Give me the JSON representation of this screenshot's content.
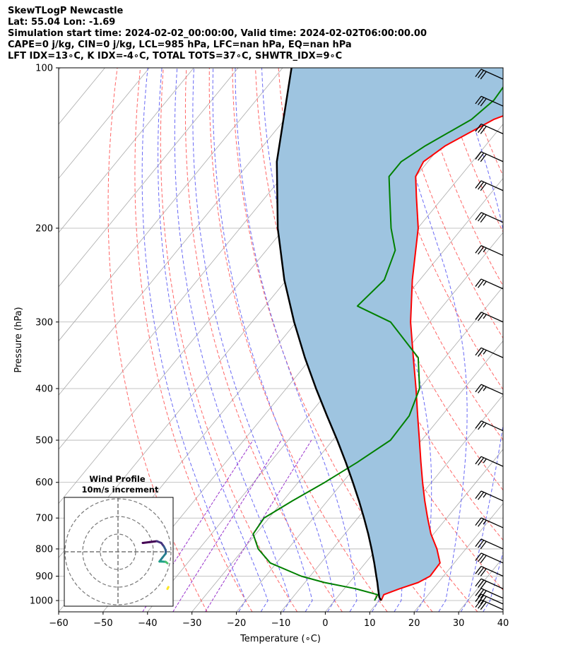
{
  "header": {
    "line1": "SkewTLogP Newcastle",
    "line2": "Lat: 55.04   Lon: -1.69",
    "line3": "Simulation start time: 2024-02-02_00:00:00, Valid time: 2024-02-02T06:00:00.00",
    "line4": "CAPE=0 j/kg, CIN=0 j/kg, LCL=985 hPa, LFC=nan hPa, EQ=nan hPa",
    "line5": "LFT IDX=13∘C, K IDX=-4∘C, TOTAL TOTS=37∘C, SHWTR_IDX=9∘C"
  },
  "colors": {
    "temperature": "#ff0000",
    "dewpoint": "#008000",
    "parcel": "#000000",
    "cape_fill": "#9ec4e0",
    "dry_adiabat": "#ff6666",
    "moist_adiabat": "#6a6af5",
    "mixing_ratio": "#9932cc",
    "isotherm": "#aaaaaa"
  },
  "chart_data": {
    "type": "line",
    "title": "",
    "xlabel": "Temperature (∘C)",
    "ylabel": "Pressure (hPa)",
    "xlim": [
      -60,
      40
    ],
    "ylim": [
      1050,
      100
    ],
    "yscale": "log",
    "skew": true,
    "grid": true,
    "x_ticks": [
      "−60",
      "−50",
      "−40",
      "−30",
      "−20",
      "−10",
      "0",
      "10",
      "20",
      "30",
      "40"
    ],
    "y_ticks": [
      "100",
      "200",
      "300",
      "400",
      "500",
      "600",
      "700",
      "800",
      "900",
      "1000"
    ],
    "series": [
      {
        "name": "Temperature",
        "pressure": [
          1000,
          975,
          950,
          925,
          900,
          850,
          800,
          750,
          700,
          650,
          600,
          550,
          500,
          450,
          400,
          350,
          300,
          250,
          200,
          175,
          160,
          150,
          140,
          125,
          115,
          105,
          100
        ],
        "values": [
          10.5,
          10.0,
          12.5,
          15.5,
          17.0,
          16.8,
          13.5,
          9.4,
          5.7,
          1.9,
          -2.0,
          -6.1,
          -10.5,
          -15.4,
          -20.8,
          -27.1,
          -34.3,
          -41.7,
          -49.9,
          -56.0,
          -60.0,
          -61.0,
          -59.0,
          -53.0,
          -45.0,
          -39.0,
          -37.0
        ]
      },
      {
        "name": "Dewpoint",
        "pressure": [
          1000,
          975,
          950,
          925,
          900,
          850,
          800,
          750,
          700,
          650,
          600,
          550,
          500,
          450,
          400,
          350,
          300,
          280,
          250,
          220,
          200,
          175,
          160,
          150,
          140,
          125,
          115,
          105,
          100
        ],
        "values": [
          9.0,
          8.6,
          2.5,
          -5.6,
          -12.0,
          -21.4,
          -26.7,
          -30.6,
          -31.1,
          -27.9,
          -24.0,
          -20.4,
          -17.0,
          -17.3,
          -20.0,
          -26.0,
          -38.8,
          -49.2,
          -48.0,
          -51.0,
          -56.0,
          -62.0,
          -66.0,
          -66.0,
          -63.5,
          -58.0,
          -56.5,
          -57.0,
          -56.0
        ]
      },
      {
        "name": "Parcel",
        "pressure": [
          1000,
          985,
          975,
          950,
          925,
          900,
          850,
          800,
          750,
          700,
          650,
          600,
          550,
          500,
          450,
          400,
          350,
          300,
          250,
          200,
          150,
          100
        ],
        "values": [
          10.5,
          9.4,
          8.9,
          7.6,
          6.3,
          4.9,
          2.0,
          -1.2,
          -4.7,
          -8.6,
          -12.9,
          -17.7,
          -23.0,
          -29.0,
          -35.8,
          -43.3,
          -51.5,
          -60.5,
          -70.5,
          -81.5,
          -94.0,
          -108.0
        ]
      }
    ],
    "barbs": [
      {
        "pressure": 1040,
        "speed_kt": 30
      },
      {
        "pressure": 1015,
        "speed_kt": 30
      },
      {
        "pressure": 990,
        "speed_kt": 30
      },
      {
        "pressure": 950,
        "speed_kt": 30
      },
      {
        "pressure": 900,
        "speed_kt": 30
      },
      {
        "pressure": 850,
        "speed_kt": 30
      },
      {
        "pressure": 800,
        "speed_kt": 30
      },
      {
        "pressure": 730,
        "speed_kt": 25
      },
      {
        "pressure": 650,
        "speed_kt": 25
      },
      {
        "pressure": 560,
        "speed_kt": 25
      },
      {
        "pressure": 480,
        "speed_kt": 25
      },
      {
        "pressure": 410,
        "speed_kt": 25
      },
      {
        "pressure": 350,
        "speed_kt": 25
      },
      {
        "pressure": 300,
        "speed_kt": 25
      },
      {
        "pressure": 260,
        "speed_kt": 25
      },
      {
        "pressure": 225,
        "speed_kt": 25
      },
      {
        "pressure": 195,
        "speed_kt": 30
      },
      {
        "pressure": 170,
        "speed_kt": 30
      },
      {
        "pressure": 150,
        "speed_kt": 30
      },
      {
        "pressure": 133,
        "speed_kt": 30
      },
      {
        "pressure": 118,
        "speed_kt": 30
      },
      {
        "pressure": 105,
        "speed_kt": 30
      }
    ],
    "hodograph": {
      "title_line1": "Wind Profile",
      "title_line2": "10m/s increment",
      "rings": [
        10,
        20,
        30
      ],
      "points": [
        {
          "u": 14,
          "v": 5,
          "c": "#440154"
        },
        {
          "u": 18,
          "v": 5.5,
          "c": "#440154"
        },
        {
          "u": 22,
          "v": 6,
          "c": "#46327e"
        },
        {
          "u": 24.5,
          "v": 5,
          "c": "#46327e"
        },
        {
          "u": 26,
          "v": 3,
          "c": "#365c8d"
        },
        {
          "u": 27,
          "v": 1,
          "c": "#365c8d"
        },
        {
          "u": 27,
          "v": -1,
          "c": "#277f8e"
        },
        {
          "u": 25,
          "v": -3.5,
          "c": "#277f8e"
        },
        {
          "u": 23.5,
          "v": -5.5,
          "c": "#1fa187"
        },
        {
          "u": 24.5,
          "v": -5.5,
          "c": "#1fa187"
        },
        {
          "u": 27,
          "v": -5.7,
          "c": "#4ac16d"
        },
        {
          "u": 28,
          "v": -6.5,
          "c": "#a0da39"
        },
        {
          "u": 28.5,
          "v": -20,
          "c": "#fde725"
        },
        {
          "u": 28,
          "v": -21,
          "c": "#fde725"
        }
      ]
    }
  }
}
